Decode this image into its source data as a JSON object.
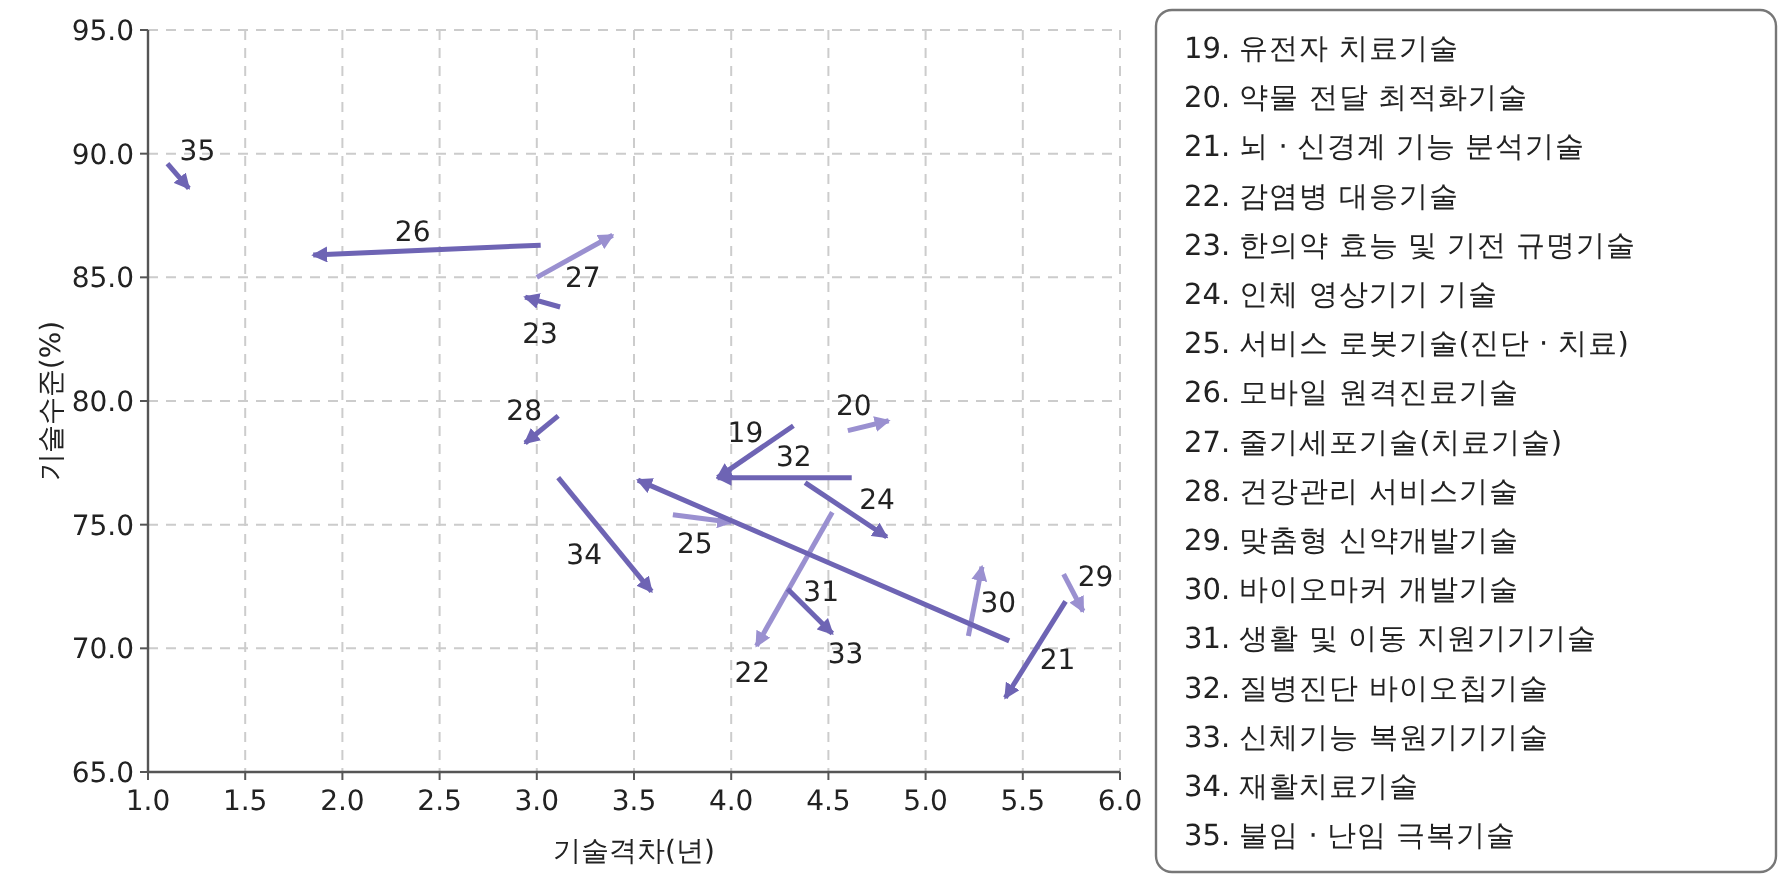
{
  "chart_data": {
    "type": "line",
    "xlabel": "기술격차(년)",
    "ylabel": "기술수준(%)",
    "xlim": [
      1.0,
      6.0
    ],
    "ylim": [
      65.0,
      95.0
    ],
    "xticks": [
      {
        "value": 1,
        "label": "1.0"
      },
      {
        "value": 1.5,
        "label": "1.5"
      },
      {
        "value": 2,
        "label": "2.0"
      },
      {
        "value": 2.5,
        "label": "2.5"
      },
      {
        "value": 3,
        "label": "3.0"
      },
      {
        "value": 3.5,
        "label": "3.5"
      },
      {
        "value": 4,
        "label": "4.0"
      },
      {
        "value": 4.5,
        "label": "4.5"
      },
      {
        "value": 5,
        "label": "5.0"
      },
      {
        "value": 5.5,
        "label": "5.5"
      },
      {
        "value": 6,
        "label": "6.0"
      }
    ],
    "yticks": [
      {
        "value": 65,
        "label": "65.0"
      },
      {
        "value": 70,
        "label": "70.0"
      },
      {
        "value": 75,
        "label": "75.0"
      },
      {
        "value": 80,
        "label": "80.0"
      },
      {
        "value": 85,
        "label": "85.0"
      },
      {
        "value": 90,
        "label": "90.0"
      },
      {
        "value": 95,
        "label": "95.0"
      }
    ],
    "grid": true,
    "line_style": "solid",
    "series": [
      {
        "name": "19",
        "color": "#6e64b4",
        "x": [
          4.32,
          3.93
        ],
        "values": [
          79.0,
          76.9
        ]
      },
      {
        "name": "20",
        "color": "#9a90d0",
        "x": [
          4.6,
          4.81
        ],
        "values": [
          78.8,
          79.2
        ]
      },
      {
        "name": "21",
        "color": "#6e64b4",
        "x": [
          5.72,
          5.41
        ],
        "values": [
          71.9,
          68.0
        ]
      },
      {
        "name": "22",
        "color": "#9a90d0",
        "x": [
          4.52,
          4.13
        ],
        "values": [
          75.5,
          70.1
        ]
      },
      {
        "name": "23",
        "color": "#6e64b4",
        "x": [
          3.12,
          2.94
        ],
        "values": [
          83.8,
          84.2
        ]
      },
      {
        "name": "24",
        "color": "#6e64b4",
        "x": [
          4.38,
          4.8
        ],
        "values": [
          76.7,
          74.5
        ]
      },
      {
        "name": "25",
        "color": "#9a90d0",
        "x": [
          3.7,
          4.0
        ],
        "values": [
          75.4,
          75.1
        ]
      },
      {
        "name": "26",
        "color": "#6e64b4",
        "x": [
          3.02,
          1.85
        ],
        "values": [
          86.3,
          85.9
        ]
      },
      {
        "name": "27",
        "color": "#9a90d0",
        "x": [
          3.0,
          3.39
        ],
        "values": [
          85.0,
          86.7
        ]
      },
      {
        "name": "28",
        "color": "#6e64b4",
        "x": [
          3.11,
          2.94
        ],
        "values": [
          79.4,
          78.3
        ]
      },
      {
        "name": "29",
        "color": "#9a90d0",
        "x": [
          5.71,
          5.81
        ],
        "values": [
          73.0,
          71.5
        ]
      },
      {
        "name": "30",
        "color": "#9a90d0",
        "x": [
          5.22,
          5.29
        ],
        "values": [
          70.5,
          73.3
        ]
      },
      {
        "name": "31",
        "color": "#6e64b4",
        "x": [
          5.43,
          3.52
        ],
        "values": [
          70.3,
          76.8
        ]
      },
      {
        "name": "32",
        "color": "#6e64b4",
        "x": [
          4.62,
          3.93
        ],
        "values": [
          76.9,
          76.9
        ]
      },
      {
        "name": "33",
        "color": "#6e64b4",
        "x": [
          4.29,
          4.52
        ],
        "values": [
          72.4,
          70.6
        ]
      },
      {
        "name": "34",
        "color": "#6e64b4",
        "x": [
          3.11,
          3.59
        ],
        "values": [
          76.9,
          72.3
        ]
      },
      {
        "name": "35",
        "color": "#6e64b4",
        "x": [
          1.1,
          1.21
        ],
        "values": [
          89.6,
          88.6
        ]
      }
    ],
    "annotations": [
      "19. 유전자 치료기술",
      "20. 약물 전달 최적화기술",
      "21. 뇌 · 신경계 기능 분석기술",
      "22. 감염병 대응기술",
      "23. 한의약 효능 및 기전 규명기술",
      "24. 인체 영상기기 기술",
      "25. 서비스 로봇기술(진단 · 치료)",
      "26. 모바일 원격진료기술",
      "27. 줄기세포기술(치료기술)",
      "28. 건강관리 서비스기술",
      "29. 맞춤형 신약개발기술",
      "30. 바이오마커 개발기술",
      "31. 생활 및 이동 지원기기기술",
      "32. 질병진단 바이오칩기술",
      "33. 신체기능 복원기기기술",
      "34. 재활치료기술",
      "35. 불임 · 난임 극복기술"
    ]
  }
}
